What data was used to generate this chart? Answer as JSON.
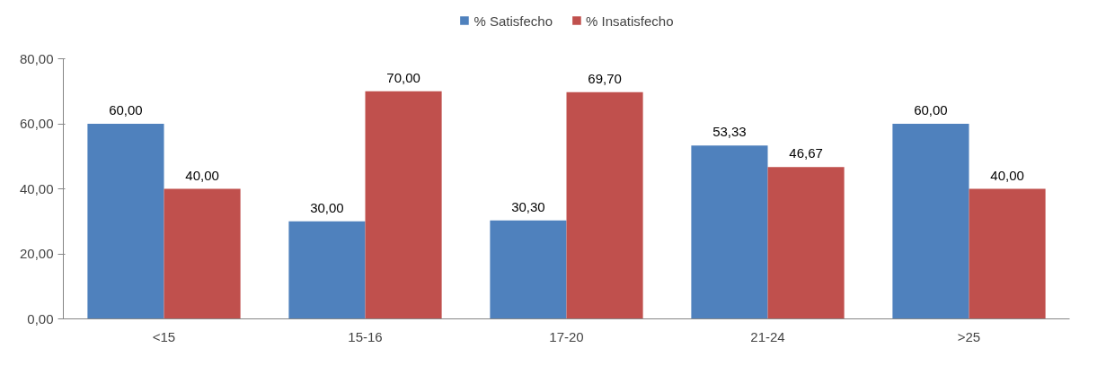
{
  "chart_data": {
    "type": "bar",
    "categories": [
      "<15",
      "15-16",
      "17-20",
      "21-24",
      ">25"
    ],
    "series": [
      {
        "name": "% Satisfecho",
        "color": "#4f81bd",
        "values": [
          60,
          30,
          30.3,
          53.33,
          60
        ],
        "value_labels": [
          "60,00",
          "30,00",
          "30,30",
          "53,33",
          "60,00"
        ]
      },
      {
        "name": "% Insatisfecho",
        "color": "#c0504d",
        "values": [
          40,
          70,
          69.7,
          46.67,
          40
        ],
        "value_labels": [
          "40,00",
          "70,00",
          "69,70",
          "46,67",
          "40,00"
        ]
      }
    ],
    "ylim": [
      0,
      80
    ],
    "yticks": [
      {
        "value": 0,
        "label": "0,00"
      },
      {
        "value": 20,
        "label": "20,00"
      },
      {
        "value": 40,
        "label": "40,00"
      },
      {
        "value": 60,
        "label": "60,00"
      },
      {
        "value": 80,
        "label": "80,00"
      }
    ],
    "grid": false,
    "legend": "top"
  }
}
